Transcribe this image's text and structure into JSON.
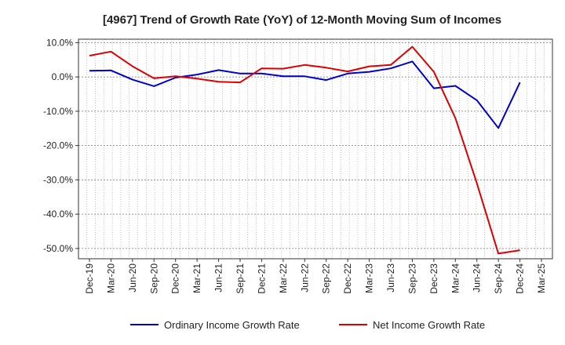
{
  "chart_data": {
    "type": "line",
    "title": "[4967]  Trend of Growth Rate (YoY) of 12-Month Moving Sum of Incomes",
    "xlabel": "",
    "ylabel": "",
    "x_ticks": [
      "Dec-19",
      "Mar-20",
      "Jun-20",
      "Sep-20",
      "Dec-20",
      "Mar-21",
      "Jun-21",
      "Sep-21",
      "Dec-21",
      "Mar-22",
      "Jun-22",
      "Sep-22",
      "Dec-22",
      "Mar-23",
      "Jun-23",
      "Sep-23",
      "Dec-23",
      "Mar-24",
      "Jun-24",
      "Sep-24",
      "Dec-24",
      "Mar-25"
    ],
    "y_ticks": [
      "10.0%",
      "0.0%",
      "-10.0%",
      "-20.0%",
      "-30.0%",
      "-40.0%",
      "-50.0%"
    ],
    "ylim": [
      -53,
      11
    ],
    "y_tick_values": [
      10,
      0,
      -10,
      -20,
      -30,
      -40,
      -50
    ],
    "grid": true,
    "legend_position": "bottom",
    "series": [
      {
        "name": "Ordinary Income Growth Rate",
        "color": "#0000cc",
        "values": [
          1.8,
          1.9,
          -0.8,
          -2.7,
          -0.2,
          0.7,
          2.0,
          1.0,
          1.0,
          0.2,
          0.2,
          -0.9,
          1.0,
          1.5,
          2.5,
          4.5,
          -3.3,
          -2.6,
          -6.8,
          -14.9,
          -1.6
        ]
      },
      {
        "name": "Net Income Growth Rate",
        "color": "#dd0000",
        "values": [
          6.2,
          7.4,
          3.1,
          -0.4,
          0.2,
          -0.5,
          -1.4,
          -1.6,
          2.5,
          2.4,
          3.5,
          2.7,
          1.6,
          3.1,
          3.5,
          8.8,
          1.5,
          -12.0,
          -31.0,
          -51.5,
          -50.5
        ]
      }
    ]
  }
}
